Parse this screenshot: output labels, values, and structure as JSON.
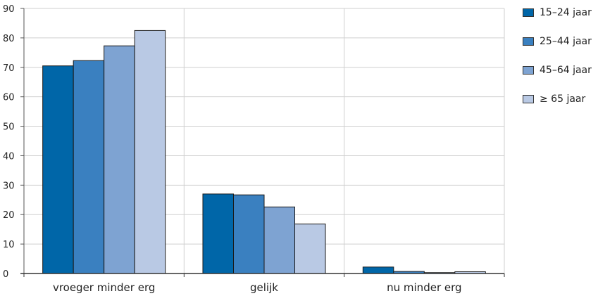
{
  "chart_data": {
    "type": "bar",
    "categories": [
      "vroeger minder erg",
      "gelijk",
      "nu minder erg"
    ],
    "series": [
      {
        "name": "15–24 jaar",
        "color": "#0066a8",
        "values": [
          70.5,
          27.0,
          2.2
        ]
      },
      {
        "name": "25–44 jaar",
        "color": "#3a80c0",
        "values": [
          72.3,
          26.7,
          0.7
        ]
      },
      {
        "name": "45–64 jaar",
        "color": "#7ea3d2",
        "values": [
          77.3,
          22.6,
          0.3
        ]
      },
      {
        "name": "≥ 65 jaar",
        "color": "#b9c9e4",
        "values": [
          82.5,
          16.8,
          0.6
        ]
      }
    ],
    "ylim": [
      0,
      90
    ],
    "yticks": [
      "0",
      "10",
      "20",
      "30",
      "40",
      "50",
      "60",
      "70",
      "80",
      "90"
    ],
    "title": "",
    "xlabel": "",
    "ylabel": "",
    "grid": true,
    "legend_position": "right"
  }
}
